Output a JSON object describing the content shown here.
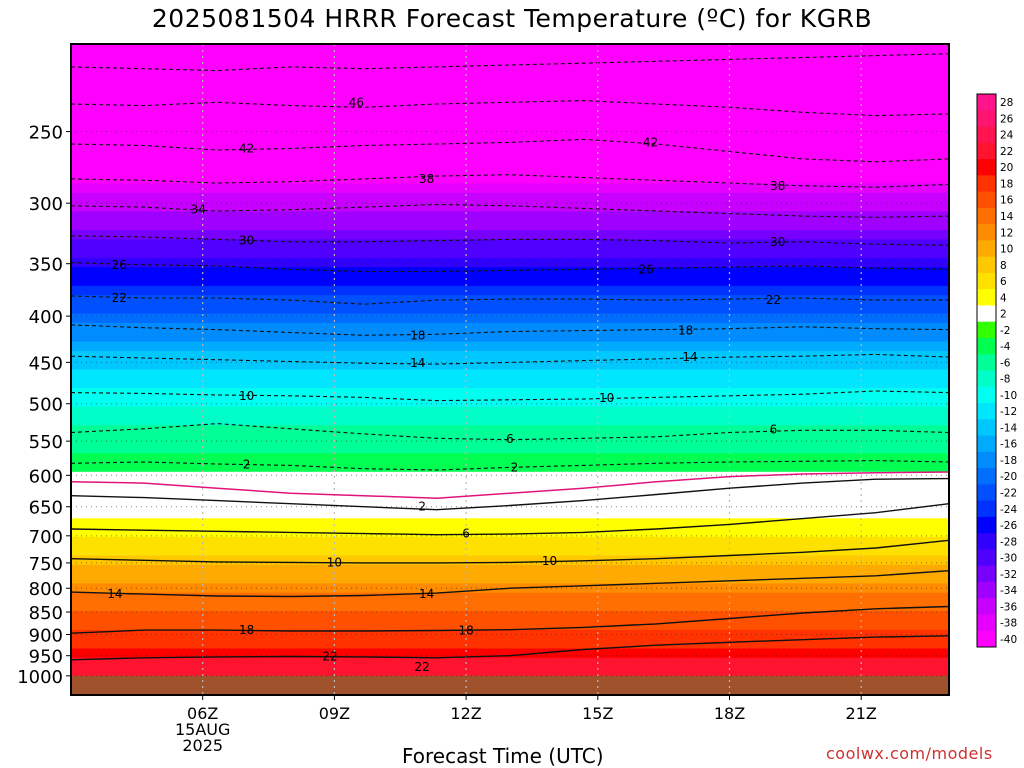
{
  "title": "2025081504 HRRR Forecast Temperature (ºC) for KGRB",
  "credit": "coolwx.com/models",
  "chart_data": {
    "type": "heatmap",
    "xlabel": "Forecast Time (UTC)",
    "ylabel": "",
    "x_range_hours": [
      3.0,
      23.0
    ],
    "y_range_hPa": [
      200,
      1050
    ],
    "y_scale": "log",
    "x_ticks": [
      {
        "hour": 6,
        "lines": [
          "06Z",
          "15AUG",
          "2025"
        ]
      },
      {
        "hour": 9,
        "lines": [
          "09Z"
        ]
      },
      {
        "hour": 12,
        "lines": [
          "12Z"
        ]
      },
      {
        "hour": 15,
        "lines": [
          "15Z"
        ]
      },
      {
        "hour": 18,
        "lines": [
          "18Z"
        ]
      },
      {
        "hour": 21,
        "lines": [
          "21Z"
        ]
      }
    ],
    "y_ticks": [
      250,
      300,
      350,
      400,
      450,
      500,
      550,
      600,
      650,
      700,
      750,
      800,
      850,
      900,
      950,
      1000
    ],
    "surface_pressure": 1000,
    "temperature_profile": [
      {
        "p": 200,
        "t": -52
      },
      {
        "p": 230,
        "t": -48
      },
      {
        "p": 250,
        "t": -44
      },
      {
        "p": 270,
        "t": -40
      },
      {
        "p": 300,
        "t": -35
      },
      {
        "p": 330,
        "t": -30
      },
      {
        "p": 350,
        "t": -27
      },
      {
        "p": 380,
        "t": -22
      },
      {
        "p": 410,
        "t": -18
      },
      {
        "p": 440,
        "t": -14
      },
      {
        "p": 480,
        "t": -10
      },
      {
        "p": 530,
        "t": -6
      },
      {
        "p": 580,
        "t": -3
      },
      {
        "p": 615,
        "t": 1
      },
      {
        "p": 650,
        "t": 3
      },
      {
        "p": 700,
        "t": 6
      },
      {
        "p": 750,
        "t": 9.5
      },
      {
        "p": 800,
        "t": 13
      },
      {
        "p": 850,
        "t": 16
      },
      {
        "p": 900,
        "t": 18.5
      },
      {
        "p": 950,
        "t": 21.5
      },
      {
        "p": 975,
        "t": 22.5
      },
      {
        "p": 1000,
        "t": 23
      }
    ],
    "dashed_contours": [
      {
        "t": -50,
        "p": [
          212,
          213,
          214,
          212,
          213,
          212,
          211,
          210,
          209,
          208,
          207,
          206,
          205
        ]
      },
      {
        "t": -46,
        "p": [
          233,
          234,
          232,
          234,
          235,
          233,
          232,
          231,
          233,
          235,
          238,
          240,
          239
        ]
      },
      {
        "t": -42,
        "p": [
          258,
          259,
          262,
          261,
          259,
          258,
          257,
          255,
          258,
          263,
          268,
          270,
          268
        ]
      },
      {
        "t": -38,
        "p": [
          282,
          283,
          285,
          284,
          282,
          280,
          279,
          281,
          283,
          285,
          287,
          288,
          286
        ]
      },
      {
        "t": -34,
        "p": [
          302,
          303,
          306,
          305,
          303,
          301,
          302,
          304,
          306,
          308,
          310,
          311,
          310
        ]
      },
      {
        "t": -30,
        "p": [
          326,
          327,
          329,
          331,
          331,
          330,
          329,
          329,
          330,
          332,
          331,
          333,
          334
        ]
      },
      {
        "t": -26,
        "p": [
          349,
          351,
          352,
          355,
          357,
          357,
          356,
          355,
          354,
          353,
          352,
          354,
          355
        ]
      },
      {
        "t": -22,
        "p": [
          380,
          382,
          382,
          384,
          388,
          384,
          383,
          383,
          384,
          383,
          382,
          384,
          384
        ]
      },
      {
        "t": -18,
        "p": [
          409,
          412,
          414,
          417,
          420,
          419,
          416,
          415,
          414,
          413,
          411,
          413,
          414
        ]
      },
      {
        "t": -14,
        "p": [
          443,
          445,
          447,
          449,
          451,
          452,
          450,
          448,
          446,
          444,
          443,
          441,
          444
        ]
      },
      {
        "t": -10,
        "p": [
          486,
          487,
          489,
          490,
          492,
          496,
          495,
          494,
          492,
          490,
          488,
          484,
          486
        ]
      },
      {
        "t": -6,
        "p": [
          538,
          533,
          526,
          533,
          540,
          546,
          548,
          546,
          544,
          538,
          535,
          535,
          538
        ]
      },
      {
        "t": -2,
        "p": [
          582,
          580,
          583,
          585,
          590,
          592,
          588,
          585,
          582,
          580,
          579,
          578,
          580
        ]
      }
    ],
    "solid_contours": [
      {
        "t": 2,
        "color": "black",
        "p": [
          632,
          635,
          640,
          645,
          650,
          655,
          648,
          640,
          630,
          620,
          612,
          606,
          605
        ]
      },
      {
        "t": 6,
        "color": "black",
        "p": [
          688,
          690,
          692,
          694,
          696,
          698,
          697,
          694,
          688,
          680,
          670,
          660,
          645
        ]
      },
      {
        "t": 10,
        "color": "black",
        "p": [
          742,
          745,
          748,
          749,
          750,
          750,
          749,
          746,
          742,
          736,
          730,
          722,
          708
        ]
      },
      {
        "t": 14,
        "color": "black",
        "p": [
          808,
          812,
          816,
          817,
          815,
          810,
          800,
          795,
          790,
          785,
          780,
          775,
          765
        ]
      },
      {
        "t": 18,
        "color": "black",
        "p": [
          897,
          890,
          890,
          892,
          892,
          891,
          889,
          884,
          876,
          864,
          852,
          843,
          838
        ]
      },
      {
        "t": 22,
        "color": "black",
        "p": [
          960,
          955,
          953,
          952,
          953,
          955,
          950,
          935,
          925,
          918,
          912,
          906,
          903
        ]
      },
      {
        "t": 0,
        "color": "magenta",
        "p": [
          610,
          612,
          620,
          628,
          632,
          636,
          628,
          620,
          610,
          602,
          598,
          596,
          595
        ]
      }
    ],
    "contour_labels": [
      {
        "t": "46",
        "h": 9.5,
        "p": 232
      },
      {
        "t": "42",
        "h": 7.0,
        "p": 261
      },
      {
        "t": "42",
        "h": 16.2,
        "p": 257
      },
      {
        "t": "38",
        "h": 11.1,
        "p": 282
      },
      {
        "t": "38",
        "h": 19.1,
        "p": 287
      },
      {
        "t": "34",
        "h": 5.9,
        "p": 305
      },
      {
        "t": "30",
        "h": 7.0,
        "p": 330
      },
      {
        "t": "30",
        "h": 19.1,
        "p": 331
      },
      {
        "t": "26",
        "h": 4.1,
        "p": 351
      },
      {
        "t": "26",
        "h": 16.1,
        "p": 355
      },
      {
        "t": "22",
        "h": 4.1,
        "p": 382
      },
      {
        "t": "22",
        "h": 19.0,
        "p": 384
      },
      {
        "t": "18",
        "h": 10.9,
        "p": 420
      },
      {
        "t": "18",
        "h": 17.0,
        "p": 415
      },
      {
        "t": "14",
        "h": 10.9,
        "p": 451
      },
      {
        "t": "14",
        "h": 17.1,
        "p": 444
      },
      {
        "t": "10",
        "h": 7.0,
        "p": 490
      },
      {
        "t": "10",
        "h": 15.2,
        "p": 493
      },
      {
        "t": "6",
        "h": 13.0,
        "p": 547
      },
      {
        "t": "6",
        "h": 19.0,
        "p": 534
      },
      {
        "t": "2",
        "h": 7.0,
        "p": 584
      },
      {
        "t": "2",
        "h": 13.1,
        "p": 588
      },
      {
        "t": "2",
        "h": 11.0,
        "p": 650
      },
      {
        "t": "6",
        "h": 12.0,
        "p": 696
      },
      {
        "t": "10",
        "h": 9.0,
        "p": 749
      },
      {
        "t": "10",
        "h": 13.9,
        "p": 746
      },
      {
        "t": "14",
        "h": 4.0,
        "p": 812
      },
      {
        "t": "14",
        "h": 11.1,
        "p": 812
      },
      {
        "t": "18",
        "h": 7.0,
        "p": 890
      },
      {
        "t": "18",
        "h": 12.0,
        "p": 891
      },
      {
        "t": "22",
        "h": 8.9,
        "p": 952
      },
      {
        "t": "22",
        "h": 11.0,
        "p": 978
      }
    ],
    "legend": {
      "placement": "right",
      "labels": [
        28,
        26,
        24,
        22,
        20,
        18,
        16,
        14,
        12,
        10,
        8,
        6,
        4,
        2,
        -2,
        -4,
        -6,
        -8,
        -10,
        -12,
        -14,
        -16,
        -18,
        -20,
        -22,
        -24,
        -26,
        -28,
        -30,
        -32,
        -34,
        -36,
        -38,
        -40
      ],
      "colors": [
        "#ff148c",
        "#ff1470",
        "#ff1450",
        "#ff1430",
        "#ff0000",
        "#ff3200",
        "#ff5000",
        "#ff6e00",
        "#ff8c00",
        "#ffaa00",
        "#ffc800",
        "#ffe100",
        "#ffff00",
        "#ffffff",
        "#32ff00",
        "#00ff50",
        "#00ff96",
        "#00ffc8",
        "#00fff0",
        "#00e6ff",
        "#00c8ff",
        "#00aaff",
        "#008cff",
        "#006eff",
        "#0050ff",
        "#0032ff",
        "#0000ff",
        "#3200ff",
        "#5000ff",
        "#7800ff",
        "#a000ff",
        "#c800ff",
        "#e600ff",
        "#ff00ff"
      ]
    }
  }
}
